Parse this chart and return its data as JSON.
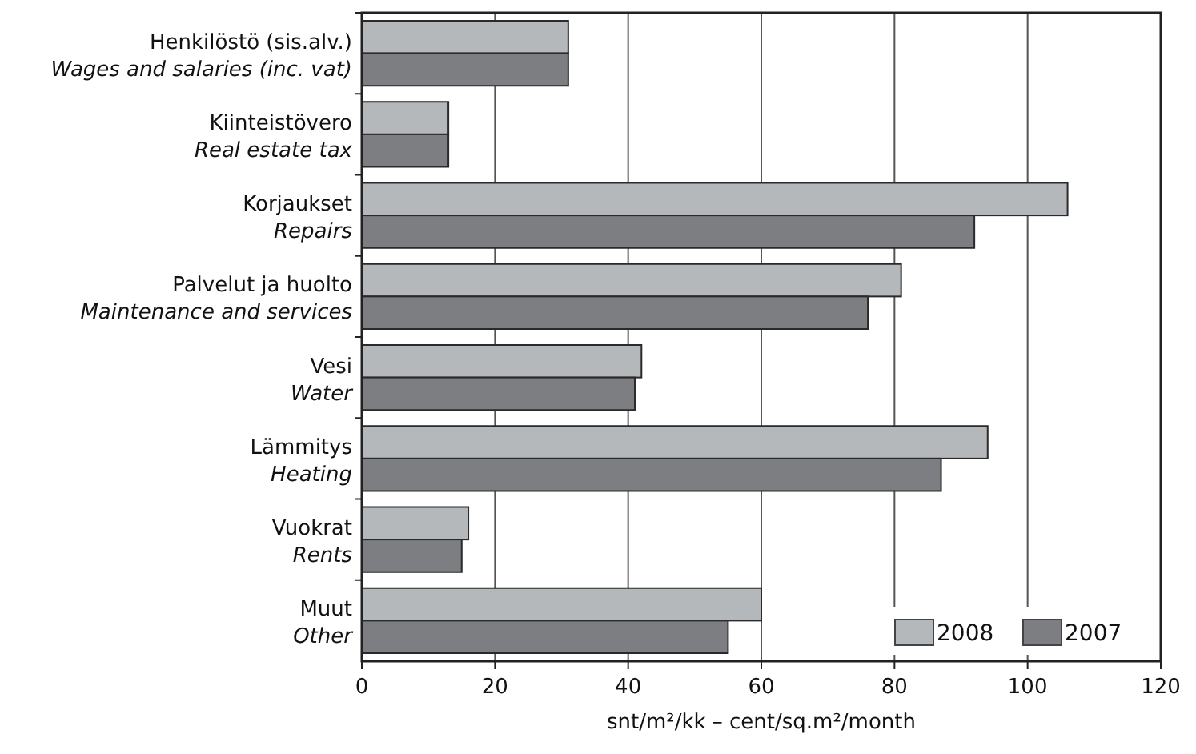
{
  "chart_data": {
    "type": "bar",
    "orientation": "horizontal",
    "categories": [
      "Henkilöstö (sis.alv.)\nWages and salaries (inc. vat)",
      "Kiinteistövero\nReal estate tax",
      "Korjaukset\nRepairs",
      "Palvelut ja huolto\nMaintenance and services",
      "Vesi\nWater",
      "Lämmitys\nHeating",
      "Vuokrat\nRents",
      "Muut\nOther"
    ],
    "series": [
      {
        "name": "2008",
        "color": "#b5b8bb",
        "values": [
          31,
          13,
          106,
          81,
          42,
          94,
          16,
          60
        ]
      },
      {
        "name": "2007",
        "color": "#7d7e82",
        "values": [
          31,
          13,
          92,
          76,
          41,
          87,
          15,
          55
        ]
      }
    ],
    "xlim": [
      0,
      120
    ],
    "xticks": [
      0,
      20,
      40,
      60,
      80,
      100,
      120
    ],
    "xlabel": "snt/m²/kk – cent/sq.m²/month",
    "grid": "x",
    "legend": "bottom right"
  }
}
